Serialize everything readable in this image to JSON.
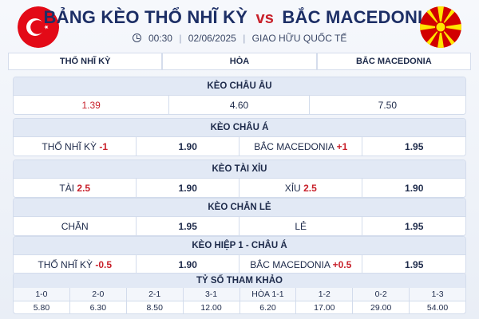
{
  "header": {
    "title_left": "BẢNG KÈO THỔ NHĨ KỲ",
    "title_vs": "vs",
    "title_right": "BẮC MACEDONIA",
    "time": "00:30",
    "date": "02/06/2025",
    "competition": "GIAO HỮU QUỐC TẾ",
    "sep": "|"
  },
  "teams": {
    "home": "THỔ NHĨ KỲ",
    "draw": "HÒA",
    "away": "BẮC MACEDONIA"
  },
  "asian_european": {
    "title": "KÈO CHÂU ÂU",
    "home": "1.39",
    "draw": "4.60",
    "away": "7.50"
  },
  "asian_handicap": {
    "title": "KÈO CHÂU Á",
    "home_label": "THỔ NHĨ KỲ",
    "home_line": "-1",
    "home_odds": "1.90",
    "away_label": "BẮC MACEDONIA",
    "away_line": "+1",
    "away_odds": "1.95"
  },
  "over_under": {
    "title": "KÈO TÀI XỈU",
    "over_label": "TÀI",
    "over_line": "2.5",
    "over_odds": "1.90",
    "under_label": "XỈU",
    "under_line": "2.5",
    "under_odds": "1.90"
  },
  "odd_even": {
    "title": "KÈO CHẴN LẺ",
    "even_label": "CHẴN",
    "even_odds": "1.95",
    "odd_label": "LẺ",
    "odd_odds": "1.95"
  },
  "first_half": {
    "title": "KÈO HIỆP 1 - CHÂU Á",
    "home_label": "THỔ NHĨ KỲ",
    "home_line": "-0.5",
    "home_odds": "1.90",
    "away_label": "BẮC MACEDONIA",
    "away_line": "+0.5",
    "away_odds": "1.95"
  },
  "scores": {
    "title": "TỶ SỐ THAM KHẢO",
    "items": [
      {
        "score": "1-0",
        "odds": "5.80"
      },
      {
        "score": "2-0",
        "odds": "6.30"
      },
      {
        "score": "2-1",
        "odds": "8.50"
      },
      {
        "score": "3-1",
        "odds": "12.00"
      },
      {
        "score": "HÒA 1-1",
        "odds": "6.20"
      },
      {
        "score": "1-2",
        "odds": "17.00"
      },
      {
        "score": "0-2",
        "odds": "29.00"
      },
      {
        "score": "1-3",
        "odds": "54.00"
      }
    ]
  },
  "colors": {
    "accent_red": "#c8212b",
    "navy": "#1d2f66",
    "turkey_red": "#e30a17",
    "macedonia_red": "#d20000",
    "macedonia_yellow": "#ffe600"
  },
  "icons": {
    "turkey_flag": "turkey-flag-icon",
    "macedonia_flag": "north-macedonia-flag-icon",
    "clock": "clock-icon"
  }
}
